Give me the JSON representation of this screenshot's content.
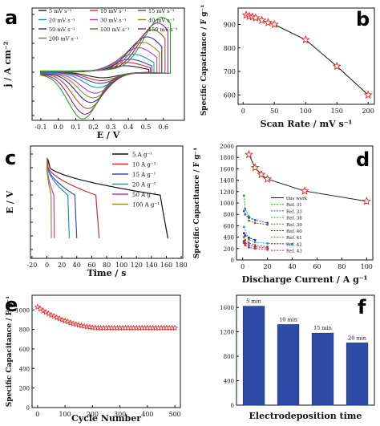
{
  "panels": {
    "a": "a",
    "b": "b",
    "c": "c",
    "d": "d",
    "e": "e",
    "f": "f"
  },
  "chart_data": [
    {
      "id": "a",
      "type": "line",
      "xlabel": "E / V",
      "ylabel": "j / A cm⁻²",
      "xlim": [
        -0.15,
        0.72
      ],
      "xticks": [
        "-0.1",
        "0.0",
        "0.1",
        "0.2",
        "0.3",
        "0.4",
        "0.5",
        "0.6"
      ],
      "yticks_shown": false,
      "series": [
        {
          "name": "5 mV s⁻¹",
          "color": "#222222",
          "scale": 0.12
        },
        {
          "name": "10 mV s⁻¹",
          "color": "#d22c2c",
          "scale": 0.18
        },
        {
          "name": "15 mV s⁻¹",
          "color": "#2f4fd6",
          "scale": 0.24
        },
        {
          "name": "20 mV s⁻¹",
          "color": "#1e9a9a",
          "scale": 0.33
        },
        {
          "name": "30 mV s⁻¹",
          "color": "#c23ac2",
          "scale": 0.45
        },
        {
          "name": "40 mV s⁻¹",
          "color": "#9a8a1e",
          "scale": 0.55
        },
        {
          "name": "50 mV s⁻¹",
          "color": "#2a2ab0",
          "scale": 0.65
        },
        {
          "name": "100 mV s⁻¹",
          "color": "#b3541e",
          "scale": 0.78
        },
        {
          "name": "150 mV s⁻¹",
          "color": "#8a2a8a",
          "scale": 0.9
        },
        {
          "name": "200 mV s⁻¹",
          "color": "#2f9a2f",
          "scale": 1.0
        }
      ]
    },
    {
      "id": "b",
      "type": "line",
      "xlabel": "Scan Rate / mV s⁻¹",
      "ylabel": "Specific Capacitance / F g⁻¹",
      "xlim": [
        -8,
        210
      ],
      "ylim": [
        560,
        970
      ],
      "xticks": [
        0,
        50,
        100,
        150,
        200
      ],
      "yticks": [
        600,
        700,
        800,
        900
      ],
      "x": [
        5,
        10,
        15,
        20,
        30,
        40,
        50,
        100,
        150,
        200
      ],
      "y": [
        940,
        935,
        932,
        928,
        918,
        908,
        900,
        835,
        722,
        600
      ],
      "marker": "star",
      "line_color": "#111111",
      "marker_color": "#e03030"
    },
    {
      "id": "c",
      "type": "line",
      "xlabel": "Time / s",
      "ylabel": "E / V",
      "xlim": [
        -22,
        182
      ],
      "xticks": [
        -20,
        0,
        20,
        40,
        60,
        80,
        100,
        120,
        140,
        160,
        180
      ],
      "yticks_shown": false,
      "series": [
        {
          "name": "5 A g⁻¹",
          "color": "#111111",
          "end": 162
        },
        {
          "name": "10 A g⁻¹",
          "color": "#d22c2c",
          "end": 70
        },
        {
          "name": "15 A g⁻¹",
          "color": "#2f4fd6",
          "end": 40
        },
        {
          "name": "20 A g⁻¹",
          "color": "#1e9a9a",
          "end": 30
        },
        {
          "name": "50 A g⁻¹",
          "color": "#c23ac2",
          "end": 10
        },
        {
          "name": "100 A g⁻¹",
          "color": "#9a8a1e",
          "end": 6
        }
      ]
    },
    {
      "id": "d",
      "type": "line",
      "xlabel": "Discharge Current / A g⁻¹",
      "ylabel": "Specific Capacitance / F g⁻¹",
      "xlim": [
        -5,
        105
      ],
      "ylim": [
        0,
        2000
      ],
      "xticks": [
        0,
        20,
        40,
        60,
        80,
        100
      ],
      "yticks": [
        0,
        200,
        400,
        600,
        800,
        1000,
        1200,
        1400,
        1600,
        1800,
        2000
      ],
      "series": [
        {
          "name": "this work",
          "color": "#222222",
          "marker": "star",
          "marker_color": "#e03030",
          "x": [
            5,
            10,
            15,
            20,
            50,
            100
          ],
          "y": [
            1850,
            1620,
            1500,
            1420,
            1210,
            1030
          ]
        },
        {
          "name": "Ref. 31",
          "color": "#1e9a3a",
          "x": [
            1,
            2,
            5,
            10
          ],
          "y": [
            1130,
            900,
            760,
            700
          ]
        },
        {
          "name": "Ref. 33",
          "color": "#2f4fd6",
          "x": [
            1,
            2,
            5,
            10,
            20
          ],
          "y": [
            860,
            800,
            740,
            700,
            650
          ]
        },
        {
          "name": "Ref. 38",
          "color": "#1ea0c8",
          "x": [
            1,
            5,
            10,
            20,
            40
          ],
          "y": [
            580,
            360,
            310,
            290,
            280
          ]
        },
        {
          "name": "Ref. 39",
          "color": "#7a6a1e",
          "x": [
            5,
            10,
            20
          ],
          "y": [
            690,
            650,
            620
          ]
        },
        {
          "name": "Ref. 40",
          "color": "#2a2a8a",
          "x": [
            1,
            2,
            5,
            10
          ],
          "y": [
            470,
            430,
            390,
            350
          ]
        },
        {
          "name": "Ref. 41",
          "color": "#b3541e",
          "x": [
            1,
            2,
            5,
            10,
            20
          ],
          "y": [
            400,
            350,
            300,
            260,
            230
          ]
        },
        {
          "name": "Ref. 42",
          "color": "#8a2a8a",
          "x": [
            1,
            2,
            5,
            10,
            20
          ],
          "y": [
            330,
            300,
            260,
            230,
            210
          ]
        },
        {
          "name": "Ref. 43",
          "color": "#c03030",
          "x": [
            1,
            2,
            5,
            10,
            20
          ],
          "y": [
            300,
            260,
            220,
            200,
            180
          ]
        }
      ]
    },
    {
      "id": "e",
      "type": "line",
      "xlabel": "Cycle Number",
      "ylabel": "Specific Capacitance / F g⁻¹",
      "xlim": [
        -20,
        520
      ],
      "ylim": [
        0,
        1150
      ],
      "xticks": [
        0,
        100,
        200,
        300,
        400,
        500
      ],
      "yticks": [
        0,
        200,
        400,
        600,
        800,
        1000
      ],
      "x": [
        0,
        10,
        20,
        30,
        40,
        50,
        60,
        70,
        80,
        90,
        100,
        110,
        120,
        130,
        140,
        150,
        160,
        170,
        180,
        190,
        200,
        210,
        220,
        230,
        240,
        250,
        260,
        270,
        280,
        290,
        300,
        310,
        320,
        330,
        340,
        350,
        360,
        370,
        380,
        390,
        400,
        410,
        420,
        430,
        440,
        450,
        460,
        470,
        480,
        490,
        500
      ],
      "y": [
        1030,
        1010,
        990,
        975,
        960,
        945,
        935,
        920,
        910,
        898,
        888,
        878,
        868,
        860,
        852,
        845,
        838,
        832,
        828,
        824,
        820,
        818,
        816,
        815,
        815,
        815,
        815,
        815,
        815,
        815,
        815,
        815,
        815,
        815,
        815,
        815,
        815,
        815,
        815,
        815,
        815,
        815,
        815,
        815,
        815,
        815,
        815,
        815,
        815,
        815,
        815
      ],
      "marker": "star",
      "line_color": "#e03030",
      "marker_color": "#e03030"
    },
    {
      "id": "f",
      "type": "bar",
      "xlabel": "Electrodeposition time",
      "ylabel": "",
      "ylim": [
        0,
        1800
      ],
      "yticks": [
        0,
        400,
        800,
        1200,
        1600
      ],
      "categories": [
        "5 min",
        "10 min",
        "15 min",
        "20 min"
      ],
      "values": [
        1620,
        1320,
        1180,
        1020
      ],
      "bar_color": "#2f4ba8"
    }
  ]
}
